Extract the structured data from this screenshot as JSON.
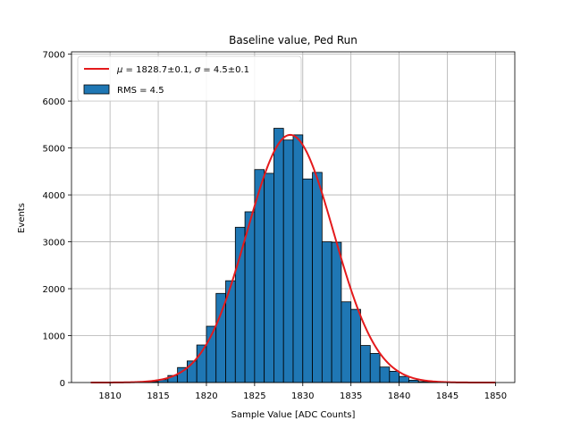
{
  "chart_data": {
    "type": "histogram",
    "title": "Baseline value, Ped Run",
    "xlabel": "Sample Value [ADC Counts]",
    "ylabel": "Events",
    "xlim": [
      1806,
      1852
    ],
    "ylim": [
      0,
      7050
    ],
    "xticks": [
      1810,
      1815,
      1820,
      1825,
      1830,
      1835,
      1840,
      1845,
      1850
    ],
    "yticks": [
      0,
      1000,
      2000,
      3000,
      4000,
      5000,
      6000,
      7000
    ],
    "grid": true,
    "legend_position": "upper left",
    "histogram": {
      "name": "RMS = 4.5",
      "color": "#1f77b4",
      "edge_color": "#000000",
      "bin_edges": [
        1813,
        1814,
        1815,
        1816,
        1817,
        1818,
        1819,
        1820,
        1821,
        1822,
        1823,
        1824,
        1825,
        1826,
        1827,
        1828,
        1829,
        1830,
        1831,
        1832,
        1833,
        1834,
        1835,
        1836,
        1837,
        1838,
        1839,
        1840,
        1841,
        1842,
        1843,
        1844
      ],
      "counts": [
        10,
        20,
        60,
        150,
        320,
        460,
        800,
        1200,
        1900,
        2170,
        3310,
        3640,
        4540,
        4460,
        5420,
        5170,
        5280,
        4340,
        4480,
        3000,
        2990,
        1720,
        1560,
        790,
        620,
        330,
        240,
        130,
        50,
        20,
        10
      ]
    },
    "fit": {
      "name_parts": [
        "μ",
        " = 1828.7±0.1, ",
        "σ",
        " = 4.5±0.1"
      ],
      "color": "#e41a1c",
      "mu": 1828.7,
      "sigma": 4.5,
      "amplitude": 5280,
      "x_range": [
        1808,
        1850
      ]
    }
  }
}
